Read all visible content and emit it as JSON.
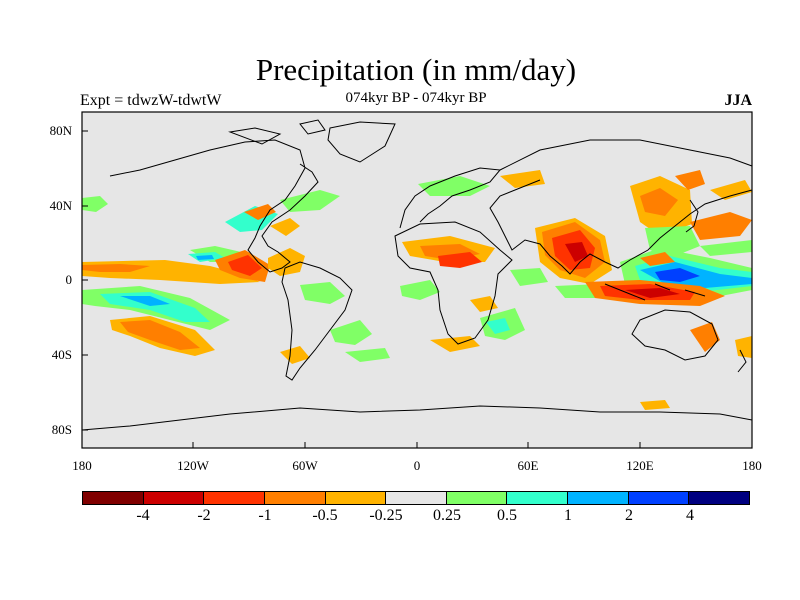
{
  "title": "Precipitation (in mm/day)",
  "subtitle": "074kyr BP - 074kyr BP",
  "left_label": "Expt = tdwzW-tdwtW",
  "right_label": "JJA",
  "lat_labels": [
    "80N",
    "40N",
    "0",
    "40S",
    "80S"
  ],
  "lon_labels": [
    "180",
    "120W",
    "60W",
    "0",
    "60E",
    "120E",
    "180"
  ],
  "colorbar": {
    "colors": [
      "#800000",
      "#cc0000",
      "#ff3300",
      "#ff7f00",
      "#ffb300",
      "#e6e6e6",
      "#80ff66",
      "#33ffcc",
      "#00b3ff",
      "#0040ff",
      "#000080"
    ],
    "labels": [
      "-4",
      "-2",
      "-1",
      "-0.5",
      "-0.25",
      "0.25",
      "0.5",
      "1",
      "2",
      "4"
    ]
  }
}
